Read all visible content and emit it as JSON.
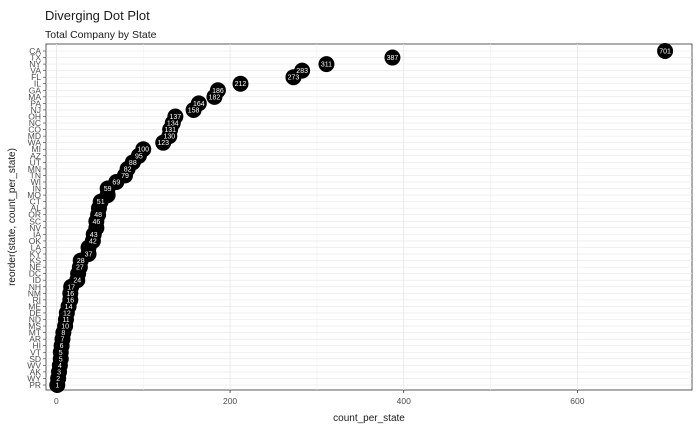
{
  "chart_data": {
    "type": "scatter",
    "title": "Diverging Dot Plot",
    "subtitle": "Total Company by State",
    "xlabel": "count_per_state",
    "ylabel": "reorder(state, count_per_state)",
    "xlim": [
      -12,
      732
    ],
    "xticks": [
      0,
      200,
      400,
      600
    ],
    "grid": true,
    "point_color": "#000000",
    "label_color": "#ffffff",
    "states": [
      "CA",
      "TX",
      "NY",
      "VA",
      "FL",
      "IL",
      "GA",
      "MA",
      "PA",
      "NJ",
      "OH",
      "NC",
      "CO",
      "MD",
      "WA",
      "MI",
      "AZ",
      "UT",
      "MN",
      "TN",
      "WI",
      "IN",
      "MO",
      "CT",
      "AL",
      "OR",
      "SC",
      "NV",
      "IA",
      "OK",
      "LA",
      "KY",
      "KS",
      "NE",
      "DC",
      "ID",
      "NH",
      "NM",
      "RI",
      "ME",
      "DE",
      "ND",
      "MS",
      "MT",
      "AR",
      "HI",
      "VT",
      "SD",
      "WV",
      "AK",
      "WY",
      "PR"
    ],
    "values": [
      701,
      387,
      311,
      283,
      273,
      212,
      186,
      182,
      164,
      158,
      137,
      134,
      131,
      130,
      123,
      100,
      95,
      88,
      82,
      79,
      69,
      59,
      59,
      51,
      49,
      48,
      46,
      46,
      43,
      42,
      37,
      37,
      28,
      27,
      25,
      24,
      17,
      16,
      16,
      14,
      12,
      11,
      10,
      8,
      7,
      6,
      5,
      5,
      4,
      3,
      2,
      1
    ],
    "labels": [
      "701",
      "387",
      "311",
      "283",
      "273",
      "212",
      "186",
      "182",
      "164",
      "158",
      "137",
      "134",
      "131",
      "130",
      "123",
      "100",
      "95",
      "88",
      "82",
      "79",
      "69",
      "59",
      "",
      "51",
      "",
      "48",
      "46",
      "",
      "43",
      "42",
      "",
      "37",
      "28",
      "27",
      "",
      "24",
      "17",
      "16",
      "16",
      "14",
      "12",
      "11",
      "10",
      "8",
      "7",
      "6",
      "5",
      "5",
      "4",
      "3",
      "2",
      "1"
    ]
  }
}
